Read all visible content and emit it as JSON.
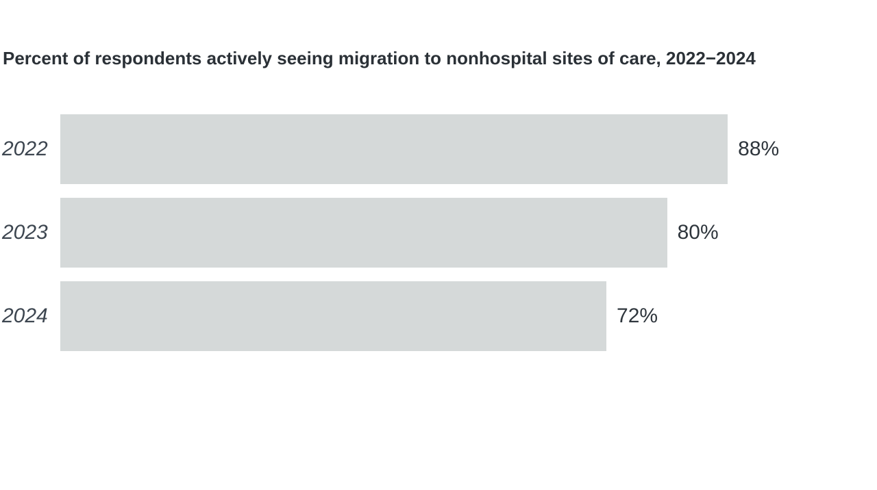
{
  "title": "Percent of respondents actively seeing migration to nonhospital sites of care, 2022−2024",
  "chart_data": {
    "type": "bar",
    "orientation": "horizontal",
    "title": "Percent of respondents actively seeing migration to nonhospital sites of care, 2022−2024",
    "categories": [
      "2022",
      "2023",
      "2024"
    ],
    "values": [
      88,
      80,
      72
    ],
    "value_labels": [
      "88%",
      "80%",
      "72%"
    ],
    "xlabel": "",
    "ylabel": "",
    "xlim": [
      0,
      100
    ],
    "grid": false,
    "legend": false,
    "data_labels_position": "outside-end",
    "category_label_style": "italic"
  },
  "colors": {
    "background": "#ffffff",
    "bar_fill": "#d5d9d9",
    "title_text": "#2b3137",
    "category_text": "#3d4650",
    "value_text": "#2f363d"
  }
}
